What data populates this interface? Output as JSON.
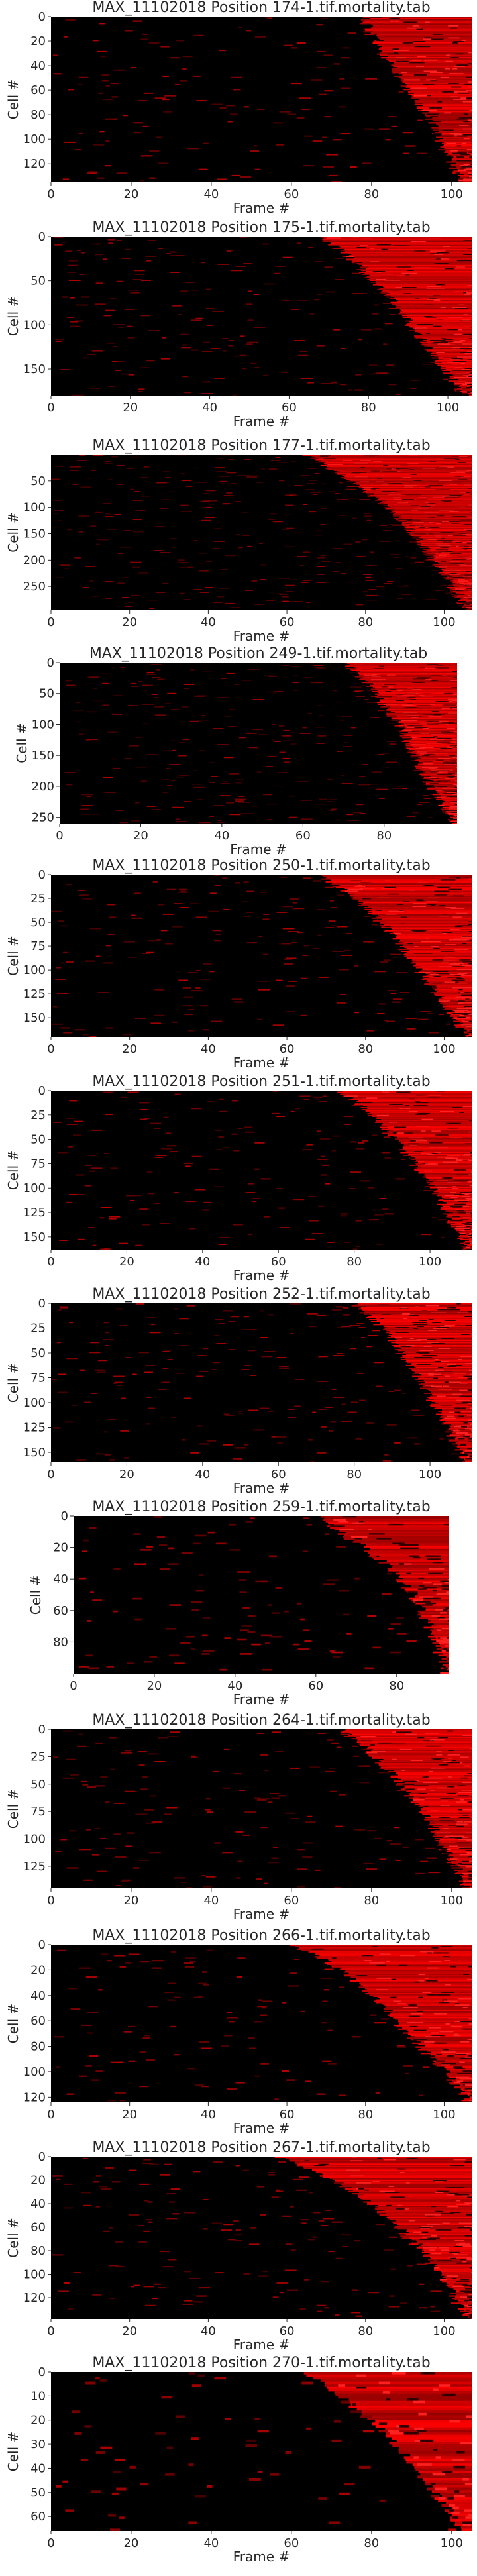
{
  "colors": {
    "heat_low": "#000000",
    "heat_high": "#ff0000",
    "text": "#262626",
    "background": "#ffffff"
  },
  "chart_data": [
    {
      "type": "heatmap",
      "title": "MAX_11102018 Position 174-1.tif.mortality.tab",
      "xlabel": "Frame #",
      "ylabel": "Cell #",
      "xlim": [
        0,
        105
      ],
      "ylim": [
        0,
        135
      ],
      "xticks": [
        0,
        20,
        40,
        60,
        80,
        100
      ],
      "yticks": [
        0,
        20,
        40,
        60,
        80,
        100,
        120
      ],
      "death_curve": [
        [
          0.0,
          78
        ],
        [
          0.1,
          80
        ],
        [
          0.2,
          82
        ],
        [
          0.3,
          85
        ],
        [
          0.4,
          88
        ],
        [
          0.5,
          91
        ],
        [
          0.6,
          94
        ],
        [
          0.7,
          96
        ],
        [
          0.8,
          98
        ],
        [
          0.9,
          100
        ],
        [
          1.0,
          103
        ]
      ]
    },
    {
      "type": "heatmap",
      "title": "MAX_11102018 Position 175-1.tif.mortality.tab",
      "xlabel": "Frame #",
      "ylabel": "Cell #",
      "xlim": [
        0,
        106
      ],
      "ylim": [
        0,
        180
      ],
      "xticks": [
        0,
        20,
        40,
        60,
        80,
        100
      ],
      "yticks": [
        0,
        50,
        100,
        150
      ],
      "death_curve": [
        [
          0.0,
          68
        ],
        [
          0.1,
          74
        ],
        [
          0.2,
          78
        ],
        [
          0.3,
          82
        ],
        [
          0.4,
          86
        ],
        [
          0.5,
          89
        ],
        [
          0.6,
          92
        ],
        [
          0.7,
          95
        ],
        [
          0.8,
          98
        ],
        [
          0.9,
          101
        ],
        [
          1.0,
          104
        ]
      ]
    },
    {
      "type": "heatmap",
      "title": "MAX_11102018 Position 177-1.tif.mortality.tab",
      "xlabel": "Frame #",
      "ylabel": "Cell #",
      "xlim": [
        0,
        107
      ],
      "ylim": [
        0,
        295
      ],
      "xticks": [
        0,
        20,
        40,
        60,
        80,
        100
      ],
      "yticks": [
        50,
        100,
        150,
        200,
        250
      ],
      "death_curve": [
        [
          0.0,
          65
        ],
        [
          0.1,
          72
        ],
        [
          0.2,
          78
        ],
        [
          0.3,
          84
        ],
        [
          0.4,
          88
        ],
        [
          0.5,
          92
        ],
        [
          0.6,
          95
        ],
        [
          0.7,
          98
        ],
        [
          0.8,
          101
        ],
        [
          0.9,
          103
        ],
        [
          1.0,
          106
        ]
      ]
    },
    {
      "type": "heatmap",
      "title": "MAX_11102018 Position 249-1.tif.mortality.tab",
      "xlabel": "Frame #",
      "ylabel": "Cell #",
      "xlim": [
        0,
        98
      ],
      "ylim": [
        0,
        260
      ],
      "xticks": [
        0,
        20,
        40,
        60,
        80
      ],
      "yticks": [
        0,
        50,
        100,
        150,
        200,
        250
      ],
      "death_curve": [
        [
          0.0,
          70
        ],
        [
          0.1,
          75
        ],
        [
          0.2,
          78
        ],
        [
          0.3,
          81
        ],
        [
          0.4,
          84
        ],
        [
          0.5,
          86
        ],
        [
          0.6,
          88
        ],
        [
          0.7,
          90
        ],
        [
          0.8,
          92
        ],
        [
          0.9,
          95
        ],
        [
          1.0,
          97
        ]
      ]
    },
    {
      "type": "heatmap",
      "title": "MAX_11102018 Position 250-1.tif.mortality.tab",
      "xlabel": "Frame #",
      "ylabel": "Cell #",
      "xlim": [
        0,
        107
      ],
      "ylim": [
        0,
        170
      ],
      "xticks": [
        0,
        20,
        40,
        60,
        80,
        100
      ],
      "yticks": [
        0,
        25,
        50,
        75,
        100,
        125,
        150
      ],
      "death_curve": [
        [
          0.0,
          68
        ],
        [
          0.1,
          75
        ],
        [
          0.2,
          80
        ],
        [
          0.3,
          84
        ],
        [
          0.4,
          88
        ],
        [
          0.5,
          91
        ],
        [
          0.6,
          94
        ],
        [
          0.7,
          97
        ],
        [
          0.8,
          100
        ],
        [
          0.9,
          103
        ],
        [
          1.0,
          106
        ]
      ]
    },
    {
      "type": "heatmap",
      "title": "MAX_11102018 Position 251-1.tif.mortality.tab",
      "xlabel": "Frame #",
      "ylabel": "Cell #",
      "xlim": [
        0,
        111
      ],
      "ylim": [
        0,
        163
      ],
      "xticks": [
        0,
        20,
        40,
        60,
        80,
        100
      ],
      "yticks": [
        0,
        25,
        50,
        75,
        100,
        125,
        150
      ],
      "death_curve": [
        [
          0.0,
          76
        ],
        [
          0.1,
          82
        ],
        [
          0.2,
          87
        ],
        [
          0.3,
          91
        ],
        [
          0.4,
          94
        ],
        [
          0.5,
          97
        ],
        [
          0.6,
          100
        ],
        [
          0.7,
          103
        ],
        [
          0.8,
          105
        ],
        [
          0.9,
          108
        ],
        [
          1.0,
          110
        ]
      ]
    },
    {
      "type": "heatmap",
      "title": "MAX_11102018 Position 252-1.tif.mortality.tab",
      "xlabel": "Frame #",
      "ylabel": "Cell #",
      "xlim": [
        0,
        111
      ],
      "ylim": [
        0,
        160
      ],
      "xticks": [
        0,
        20,
        40,
        60,
        80,
        100
      ],
      "yticks": [
        0,
        25,
        50,
        75,
        100,
        125,
        150
      ],
      "death_curve": [
        [
          0.0,
          80
        ],
        [
          0.1,
          85
        ],
        [
          0.2,
          89
        ],
        [
          0.3,
          92
        ],
        [
          0.4,
          95
        ],
        [
          0.5,
          98
        ],
        [
          0.6,
          100
        ],
        [
          0.7,
          103
        ],
        [
          0.8,
          105
        ],
        [
          0.9,
          107
        ],
        [
          1.0,
          110
        ]
      ]
    },
    {
      "type": "heatmap",
      "title": "MAX_11102018 Position 259-1.tif.mortality.tab",
      "xlabel": "Frame #",
      "ylabel": "Cell #",
      "xlim": [
        0,
        93
      ],
      "ylim": [
        0,
        100
      ],
      "xticks": [
        0,
        20,
        40,
        60,
        80
      ],
      "yticks": [
        0,
        20,
        40,
        60,
        80
      ],
      "death_curve": [
        [
          0.0,
          60
        ],
        [
          0.1,
          66
        ],
        [
          0.2,
          72
        ],
        [
          0.3,
          77
        ],
        [
          0.4,
          81
        ],
        [
          0.5,
          84
        ],
        [
          0.6,
          86
        ],
        [
          0.7,
          88
        ],
        [
          0.8,
          89
        ],
        [
          0.9,
          91
        ],
        [
          1.0,
          92
        ]
      ]
    },
    {
      "type": "heatmap",
      "title": "MAX_11102018 Position 264-1.tif.mortality.tab",
      "xlabel": "Frame #",
      "ylabel": "Cell #",
      "xlim": [
        0,
        105
      ],
      "ylim": [
        0,
        145
      ],
      "xticks": [
        0,
        20,
        40,
        60,
        80,
        100
      ],
      "yticks": [
        0,
        25,
        50,
        75,
        100,
        125
      ],
      "death_curve": [
        [
          0.0,
          72
        ],
        [
          0.1,
          78
        ],
        [
          0.2,
          82
        ],
        [
          0.3,
          86
        ],
        [
          0.4,
          89
        ],
        [
          0.5,
          92
        ],
        [
          0.6,
          95
        ],
        [
          0.7,
          97
        ],
        [
          0.8,
          99
        ],
        [
          0.9,
          102
        ],
        [
          1.0,
          104
        ]
      ]
    },
    {
      "type": "heatmap",
      "title": "MAX_11102018 Position 266-1.tif.mortality.tab",
      "xlabel": "Frame #",
      "ylabel": "Cell #",
      "xlim": [
        0,
        107
      ],
      "ylim": [
        0,
        124
      ],
      "xticks": [
        0,
        20,
        40,
        60,
        80,
        100
      ],
      "yticks": [
        0,
        20,
        40,
        60,
        80,
        100,
        120
      ],
      "death_curve": [
        [
          0.0,
          62
        ],
        [
          0.1,
          70
        ],
        [
          0.2,
          76
        ],
        [
          0.3,
          81
        ],
        [
          0.4,
          85
        ],
        [
          0.5,
          88
        ],
        [
          0.6,
          92
        ],
        [
          0.7,
          96
        ],
        [
          0.8,
          100
        ],
        [
          0.9,
          103
        ],
        [
          1.0,
          106
        ]
      ]
    },
    {
      "type": "heatmap",
      "title": "MAX_11102018 Position 267-1.tif.mortality.tab",
      "xlabel": "Frame #",
      "ylabel": "Cell #",
      "xlim": [
        0,
        107
      ],
      "ylim": [
        0,
        138
      ],
      "xticks": [
        0,
        20,
        40,
        60,
        80,
        100
      ],
      "yticks": [
        0,
        20,
        40,
        60,
        80,
        100,
        120
      ],
      "death_curve": [
        [
          0.0,
          58
        ],
        [
          0.1,
          68
        ],
        [
          0.2,
          76
        ],
        [
          0.3,
          82
        ],
        [
          0.4,
          87
        ],
        [
          0.5,
          91
        ],
        [
          0.6,
          95
        ],
        [
          0.7,
          98
        ],
        [
          0.8,
          101
        ],
        [
          0.9,
          103
        ],
        [
          1.0,
          106
        ]
      ]
    },
    {
      "type": "heatmap",
      "title": "MAX_11102018 Position 270-1.tif.mortality.tab",
      "xlabel": "Frame #",
      "ylabel": "Cell #",
      "xlim": [
        0,
        105
      ],
      "ylim": [
        0,
        66
      ],
      "xticks": [
        0,
        20,
        40,
        60,
        80,
        100
      ],
      "yticks": [
        0,
        10,
        20,
        30,
        40,
        50,
        60
      ],
      "death_curve": [
        [
          0.0,
          64
        ],
        [
          0.1,
          70
        ],
        [
          0.2,
          75
        ],
        [
          0.3,
          80
        ],
        [
          0.4,
          84
        ],
        [
          0.5,
          88
        ],
        [
          0.6,
          91
        ],
        [
          0.7,
          94
        ],
        [
          0.8,
          97
        ],
        [
          0.9,
          100
        ],
        [
          1.0,
          103
        ]
      ]
    }
  ]
}
